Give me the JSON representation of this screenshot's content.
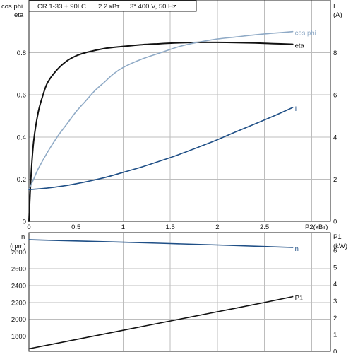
{
  "header": {
    "model": "CR 1-33 + 90LC",
    "power": "2.2 кВт",
    "supply": "3* 400 V, 50 Hz"
  },
  "colors": {
    "eta": "#111111",
    "cos_phi": "#8faac6",
    "current": "#1f4f86",
    "speed": "#1f4f86",
    "p1": "#111111",
    "grid": "#bdbdbd"
  },
  "chart_data": [
    {
      "type": "line",
      "xlabel": "P2(кВт)",
      "xlim": [
        0,
        3.2
      ],
      "x_ticks": [
        "0",
        "0.5",
        "1",
        "1.5",
        "2",
        "2.5"
      ],
      "x_tick_values": [
        0,
        0.5,
        1,
        1.5,
        2,
        2.5
      ],
      "left_axis": {
        "labels": [
          "cos phi",
          "eta"
        ],
        "lim": [
          0,
          1.05
        ],
        "ticks": [
          "0",
          "0.2",
          "0.4",
          "0.6",
          "0.8"
        ],
        "tick_values": [
          0,
          0.2,
          0.4,
          0.6,
          0.8
        ]
      },
      "right_axis": {
        "labels": [
          "I",
          "(A)"
        ],
        "lim": [
          0,
          10.5
        ],
        "ticks": [
          "0",
          "2",
          "4",
          "6",
          "8"
        ],
        "tick_values": [
          0,
          2,
          4,
          6,
          8
        ]
      },
      "grid": true,
      "series": [
        {
          "name": "eta",
          "axis": "left",
          "x": [
            0,
            0.02,
            0.05,
            0.1,
            0.15,
            0.2,
            0.3,
            0.4,
            0.5,
            0.6,
            0.8,
            1.0,
            1.2,
            1.4,
            1.6,
            1.8,
            2.0,
            2.2,
            2.4,
            2.6,
            2.8
          ],
          "y": [
            0,
            0.2,
            0.38,
            0.52,
            0.6,
            0.66,
            0.72,
            0.76,
            0.785,
            0.8,
            0.82,
            0.83,
            0.838,
            0.843,
            0.847,
            0.849,
            0.849,
            0.848,
            0.846,
            0.843,
            0.84
          ]
        },
        {
          "name": "cos phi",
          "axis": "left",
          "x": [
            0,
            0.05,
            0.1,
            0.2,
            0.3,
            0.4,
            0.5,
            0.6,
            0.7,
            0.8,
            0.9,
            1.0,
            1.2,
            1.4,
            1.6,
            1.8,
            2.0,
            2.2,
            2.4,
            2.6,
            2.8
          ],
          "y": [
            0.15,
            0.2,
            0.25,
            0.33,
            0.4,
            0.46,
            0.52,
            0.57,
            0.62,
            0.66,
            0.7,
            0.73,
            0.77,
            0.8,
            0.83,
            0.85,
            0.865,
            0.875,
            0.885,
            0.893,
            0.9
          ]
        },
        {
          "name": "I",
          "axis": "right",
          "x": [
            0,
            0.2,
            0.4,
            0.6,
            0.8,
            1.0,
            1.2,
            1.4,
            1.6,
            1.8,
            2.0,
            2.2,
            2.4,
            2.6,
            2.8
          ],
          "y": [
            1.5,
            1.58,
            1.7,
            1.87,
            2.07,
            2.32,
            2.58,
            2.87,
            3.18,
            3.52,
            3.87,
            4.25,
            4.62,
            5.0,
            5.4
          ]
        }
      ]
    },
    {
      "type": "line",
      "xlim": [
        0,
        3.2
      ],
      "left_axis": {
        "labels": [
          "n",
          "(rpm)"
        ],
        "lim": [
          1620,
          3030
        ],
        "ticks": [
          "1800",
          "2000",
          "2200",
          "2400",
          "2600",
          "2800"
        ],
        "tick_values": [
          1800,
          2000,
          2200,
          2400,
          2600,
          2800
        ]
      },
      "right_axis": {
        "labels": [
          "P1",
          "(kW)"
        ],
        "lim": [
          0,
          7.05
        ],
        "ticks": [
          "0",
          "1",
          "2",
          "3",
          "4",
          "5",
          "6"
        ],
        "tick_values": [
          0,
          1,
          2,
          3,
          4,
          5,
          6
        ]
      },
      "grid": true,
      "series": [
        {
          "name": "n",
          "axis": "left",
          "x": [
            0,
            0.5,
            1.0,
            1.5,
            2.0,
            2.5,
            2.8
          ],
          "y": [
            2945,
            2931,
            2916,
            2900,
            2883,
            2865,
            2854
          ]
        },
        {
          "name": "P1",
          "axis": "right",
          "x": [
            0,
            0.5,
            1.0,
            1.5,
            2.0,
            2.5,
            2.8
          ],
          "y": [
            0.15,
            0.7,
            1.25,
            1.8,
            2.35,
            2.9,
            3.25
          ]
        }
      ]
    }
  ]
}
